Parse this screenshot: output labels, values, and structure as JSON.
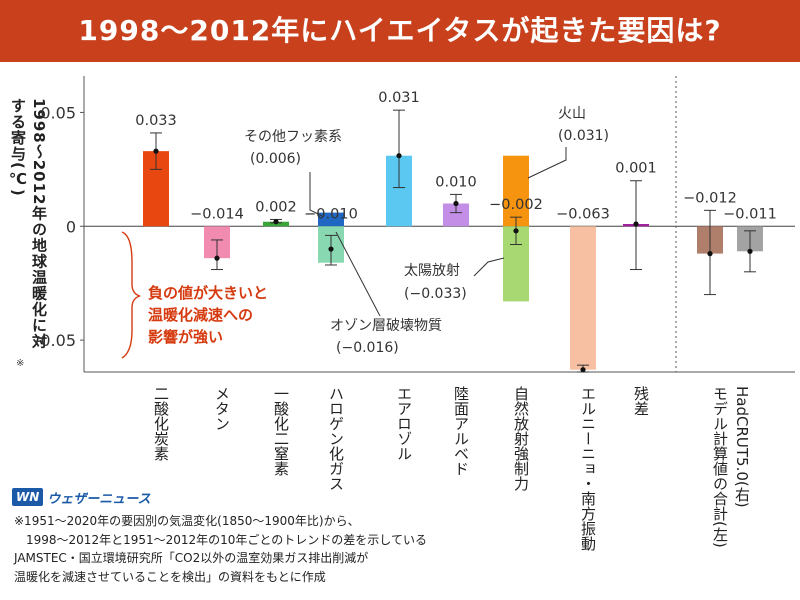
{
  "title": "1998〜2012年にハイエイタスが起きた要因は?",
  "ylabel": "1998〜2012年の地球温暖化に対する寄与(℃)",
  "ylabel_note": "※",
  "chart_data": {
    "type": "bar",
    "ylim": [
      -0.064,
      0.066
    ],
    "yticks": [
      0.05,
      0,
      -0.05
    ],
    "ytick_labels": [
      "0.05",
      "0",
      "-0.05"
    ],
    "bars": [
      {
        "category": "二酸化炭素",
        "value": 0.033,
        "err_low": 0.025,
        "err_high": 0.041,
        "label": "0.033",
        "color": "#e8470f"
      },
      {
        "category": "メタン",
        "value": -0.014,
        "err_low": -0.019,
        "err_high": -0.006,
        "label": "−0.014",
        "color": "#f28bb0"
      },
      {
        "category": "一酸化二窒素",
        "value": 0.002,
        "err_low": 0.0015,
        "err_high": 0.003,
        "label": "0.002",
        "color": "#3aa639"
      },
      {
        "category": "ハロゲン化ガス",
        "segments": [
          {
            "value": 0.006,
            "color": "#1f67c2",
            "name": "その他フッ素系",
            "name_value": "(0.006)"
          },
          {
            "value": -0.016,
            "color": "#88d9b2",
            "name": "オゾン層破壊物質",
            "name_value": "(−0.016)"
          }
        ],
        "value": -0.01,
        "err_low": -0.017,
        "err_high": -0.004,
        "label": "−0.010"
      },
      {
        "category": "エアロゾル",
        "value": 0.031,
        "err_low": 0.017,
        "err_high": 0.051,
        "label": "0.031",
        "color": "#5ac8f0"
      },
      {
        "category": "陸面アルベド",
        "value": 0.01,
        "err_low": 0.006,
        "err_high": 0.014,
        "label": "0.010",
        "color": "#c38ee6"
      },
      {
        "category": "自然放射強制力",
        "segments": [
          {
            "value": 0.031,
            "color": "#f7940f",
            "name": "火山",
            "name_value": "(0.031)"
          },
          {
            "value": -0.033,
            "color": "#a8d871",
            "name": "太陽放射",
            "name_value": "(−0.033)"
          }
        ],
        "value": -0.002,
        "err_low": -0.008,
        "err_high": 0.004,
        "label": "−0.002"
      },
      {
        "category": "エルニーニョ・南方振動",
        "value": -0.063,
        "err_low": -0.064,
        "err_high": -0.061,
        "label": "−0.063",
        "color": "#f7c0a3"
      },
      {
        "category": "残差",
        "value": 0.001,
        "err_low": -0.019,
        "err_high": 0.02,
        "label": "0.001",
        "color": "#a0209e"
      },
      {
        "category": "HadCRUT5.0(右)",
        "value": -0.011,
        "err_low": -0.02,
        "err_high": -0.002,
        "label": "−0.011",
        "color": "#a3a3a3",
        "group": "model"
      },
      {
        "category": "モデル計算値の合計(左)",
        "value": -0.012,
        "err_low": -0.03,
        "err_high": 0.007,
        "label": "−0.012",
        "color": "#b07f6c",
        "group": "model"
      }
    ],
    "model_axis_label": [
      "HadCRUT5.0(右)",
      "モデル計算値の合計(左)"
    ],
    "annotation": [
      "負の値が大きいと",
      "温暖化減速への",
      "影響が強い"
    ],
    "annotation_color": "#d63a0f"
  },
  "logo": {
    "mark": "WN",
    "text": "ウェザーニュース"
  },
  "notes": [
    "※1951〜2020年の要因別の気温変化(1850〜1900年比)から、",
    "　1998〜2012年と1951〜2012年の10年ごとのトレンドの差を示している",
    "JAMSTEC・国立環境研究所「CO2以外の温室効果ガス排出削減が",
    "温暖化を減速させていることを検出」の資料をもとに作成"
  ]
}
